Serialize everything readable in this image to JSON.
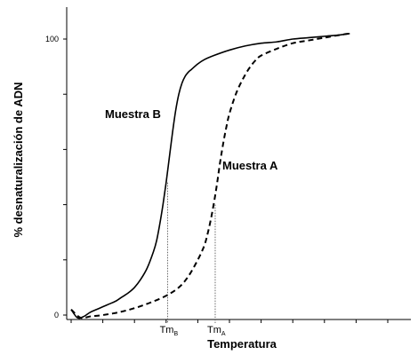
{
  "chart_data": {
    "type": "line",
    "title": "",
    "xlabel": "Temperatura",
    "ylabel": "% desnaturalización de ADN",
    "xlim": [
      0,
      100
    ],
    "ylim": [
      0,
      100
    ],
    "yticks": [
      {
        "value": 0,
        "label": "0"
      },
      {
        "value": 20,
        "label": ""
      },
      {
        "value": 40,
        "label": ""
      },
      {
        "value": 60,
        "label": ""
      },
      {
        "value": 80,
        "label": ""
      },
      {
        "value": 100,
        "label": "100"
      }
    ],
    "xticks": [
      0,
      10,
      20,
      30,
      40,
      50,
      60,
      70,
      80,
      90,
      100
    ],
    "markers": [
      {
        "name": "Tm",
        "sub": "B",
        "x": 30.5,
        "y": 48
      },
      {
        "name": "Tm",
        "sub": "A",
        "x": 45.5,
        "y": 40
      }
    ],
    "series": [
      {
        "name": "Muestra B",
        "style": "solid",
        "color": "#000000",
        "x": [
          0,
          2,
          4,
          6,
          8,
          10,
          12,
          14,
          16,
          18,
          20,
          22,
          24,
          26,
          27,
          28,
          29,
          30,
          31,
          32,
          33,
          34,
          35,
          36,
          37,
          38,
          40,
          42,
          45,
          50,
          55,
          60,
          65,
          70,
          75,
          80,
          85,
          88
        ],
        "y": [
          2,
          -1,
          -0.5,
          1,
          2,
          3,
          4,
          5,
          6.5,
          8,
          10,
          13,
          17,
          23,
          27,
          33,
          40,
          48,
          57,
          66,
          74,
          80,
          84,
          86.5,
          88,
          89,
          91,
          92.5,
          94,
          96,
          97.5,
          98.5,
          99,
          100,
          100.5,
          101,
          101.5,
          102
        ]
      },
      {
        "name": "Muestra A",
        "style": "dashed",
        "color": "#000000",
        "x": [
          0,
          3,
          6,
          10,
          15,
          20,
          25,
          30,
          34,
          37,
          40,
          42,
          43,
          44,
          45,
          46,
          47,
          48,
          49,
          50,
          52,
          54,
          56,
          58,
          60,
          65,
          70,
          75,
          80,
          85,
          88
        ],
        "y": [
          2,
          -1,
          -0.5,
          0,
          1,
          2.5,
          4.5,
          7,
          10,
          14,
          20,
          25,
          29,
          34,
          40,
          47,
          55,
          62,
          68,
          73,
          80,
          85,
          89,
          92,
          94,
          96.5,
          98.5,
          99.5,
          100.5,
          101.5,
          102
        ]
      }
    ]
  }
}
